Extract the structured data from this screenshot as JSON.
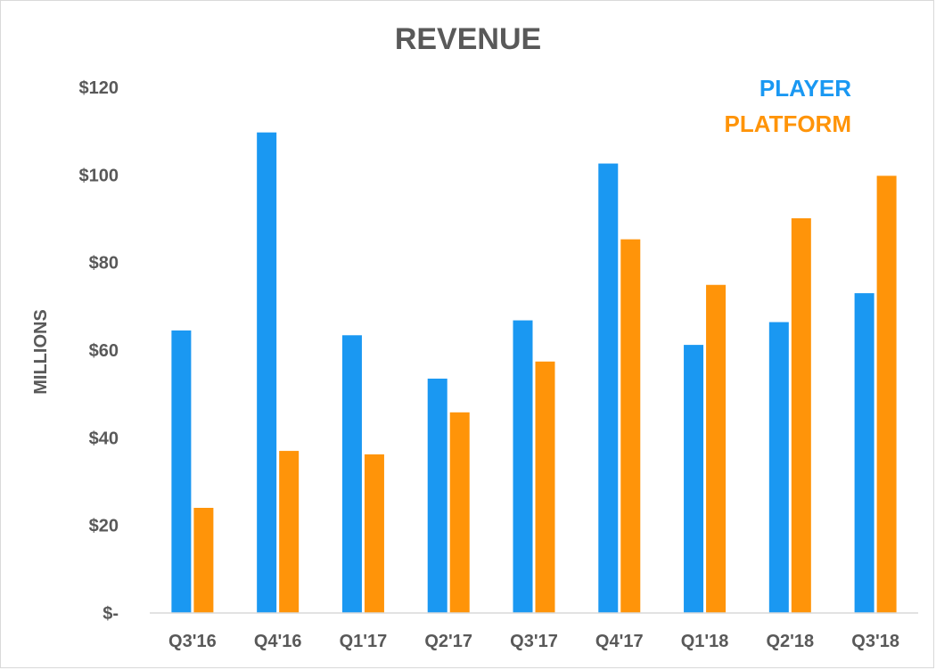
{
  "chart_data": {
    "type": "bar",
    "title": "REVENUE",
    "ylabel": "MILLIONS",
    "xlabel": "",
    "categories": [
      "Q3'16",
      "Q4'16",
      "Q1'17",
      "Q2'17",
      "Q3'17",
      "Q4'17",
      "Q1'18",
      "Q2'18",
      "Q3'18"
    ],
    "series": [
      {
        "name": "PLAYER",
        "color": "#1a98f2",
        "values": [
          64.5,
          109.7,
          63.4,
          53.5,
          66.8,
          102.6,
          61.2,
          66.4,
          73.0
        ]
      },
      {
        "name": "PLATFORM",
        "color": "#ff9409",
        "values": [
          24.0,
          37.0,
          36.2,
          45.8,
          57.4,
          85.3,
          74.9,
          90.1,
          99.8
        ]
      }
    ],
    "ylim": [
      0,
      120
    ],
    "yticks": [
      0,
      20,
      40,
      60,
      80,
      100,
      120
    ],
    "ytick_labels": [
      "$-",
      "$20",
      "$40",
      "$60",
      "$80",
      "$100",
      "$120"
    ],
    "grid": false,
    "legend_position": "top-right"
  }
}
